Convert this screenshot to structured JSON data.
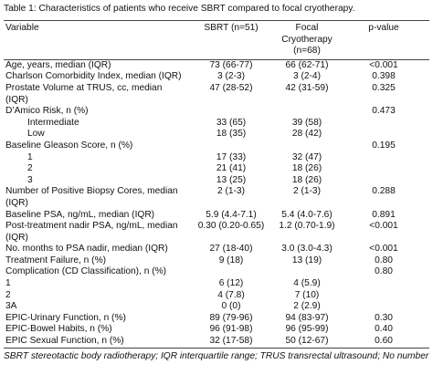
{
  "title": "Table 1: Characteristics of patients who receive SBRT compared to focal cryotherapy.",
  "table": {
    "header": [
      "Variable",
      "SBRT (n=51)",
      "Focal Cryotherapy (n=68)",
      "p-value"
    ],
    "rows": [
      [
        "Age, years, median (IQR)",
        "73 (66-77)",
        "66 (62-71)",
        "<0.001"
      ],
      [
        "Charlson Comorbidity Index, median (IQR)",
        "3 (2-3)",
        "3 (2-4)",
        "0.398"
      ],
      [
        "Prostate Volume at TRUS, cc, median (IQR)",
        "47 (28-52)",
        "42 (31-59)",
        "0.325"
      ],
      [
        "D’Amico Risk, n (%)",
        null,
        null,
        "0.473"
      ],
      [
        "Intermediate",
        "33 (65)",
        "39 (58)",
        null
      ],
      [
        "Low",
        "18 (35)",
        "28 (42)",
        null
      ],
      [
        "Baseline Gleason Score, n (%)",
        null,
        null,
        "0.195"
      ],
      [
        "1",
        "17 (33)",
        "32 (47)",
        null
      ],
      [
        "2",
        "21 (41)",
        "18 (26)",
        null
      ],
      [
        "3",
        "13 (25)",
        "18 (26)",
        null
      ],
      [
        "Number of Positive Biopsy Cores, median (IQR)",
        "2 (1-3)",
        "2 (1-3)",
        "0.288"
      ],
      [
        "Baseline PSA, ng/mL, median (IQR)",
        "5.9 (4.4-7.1)",
        "5.4 (4.0-7.6)",
        "0.891"
      ],
      [
        "Post-treatment nadir PSA, ng/mL, median (IQR)",
        "0.30 (0.20-0.65)",
        "1.2 (0.70-1.9)",
        "<0.001"
      ],
      [
        "No. months to PSA nadir, median (IQR)",
        "27 (18-40)",
        "3.0 (3.0-4.3)",
        "<0.001"
      ],
      [
        "Treatment Failure, n (%)",
        "9 (18)",
        "13 (19)",
        "0.80"
      ],
      [
        "Complication (CD Classification), n (%)",
        null,
        null,
        "0.80"
      ],
      [
        "1",
        "6 (12)",
        "4 (5.9)",
        null
      ],
      [
        "2",
        "4 (7.8)",
        "7 (10)",
        null
      ],
      [
        "3A",
        "0 (0)",
        "2 (2.9)",
        null
      ],
      [
        "EPIC-Urinary Function, n (%)",
        "89 (79-96)",
        "94 (83-97)",
        "0.30"
      ],
      [
        "EPIC-Bowel Habits, n (%)",
        "96 (91-98)",
        "96 (95-99)",
        "0.40"
      ],
      [
        "EPIC Sexual Function, n (%)",
        "32 (17-58)",
        "50 (12-67)",
        "0.60"
      ]
    ]
  },
  "footnote": "SBRT stereotactic body radiotherapy; IQR interquartile range; TRUS transrectal ultrasound; No number"
}
